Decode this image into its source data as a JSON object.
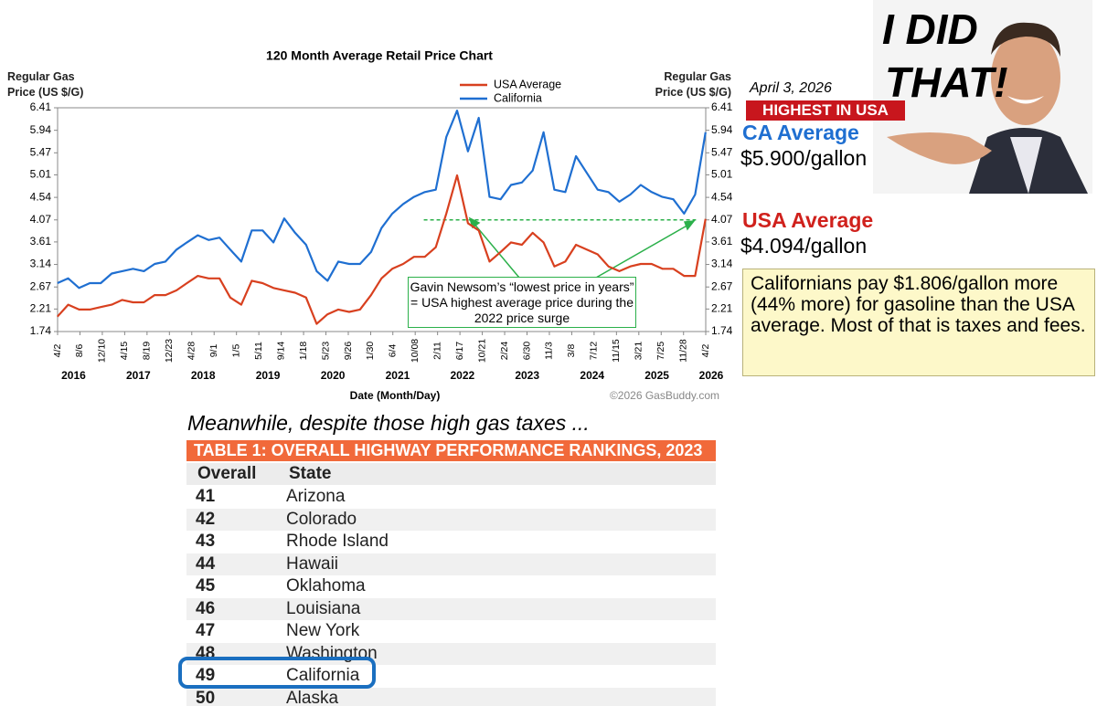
{
  "chart_data": {
    "type": "line",
    "title": "120 Month Average Retail Price Chart",
    "y_label": "Regular Gas Price (US $/G)",
    "y2_label": "Regular Gas Price (US $/G)",
    "x_label": "Date (Month/Day)",
    "credit": "©2026 GasBuddy.com",
    "legend": "top",
    "grid": false,
    "x": [
      "2016-04",
      "2016-06",
      "2016-08",
      "2016-10",
      "2016-12",
      "2017-02",
      "2017-04",
      "2017-06",
      "2017-08",
      "2017-10",
      "2017-12",
      "2018-02",
      "2018-04",
      "2018-06",
      "2018-08",
      "2018-10",
      "2018-12",
      "2019-02",
      "2019-04",
      "2019-06",
      "2019-08",
      "2019-10",
      "2019-12",
      "2020-02",
      "2020-04",
      "2020-06",
      "2020-08",
      "2020-10",
      "2020-12",
      "2021-02",
      "2021-04",
      "2021-06",
      "2021-08",
      "2021-10",
      "2021-12",
      "2022-02",
      "2022-04",
      "2022-06",
      "2022-08",
      "2022-10",
      "2022-12",
      "2023-02",
      "2023-04",
      "2023-06",
      "2023-08",
      "2023-10",
      "2023-12",
      "2024-02",
      "2024-04",
      "2024-06",
      "2024-08",
      "2024-10",
      "2024-12",
      "2025-02",
      "2025-04",
      "2025-06",
      "2025-08",
      "2025-10",
      "2025-12",
      "2026-02",
      "2026-04"
    ],
    "series": [
      {
        "name": "USA Average",
        "color": "#d8401f",
        "values": [
          2.05,
          2.3,
          2.2,
          2.2,
          2.25,
          2.3,
          2.4,
          2.35,
          2.35,
          2.5,
          2.5,
          2.6,
          2.75,
          2.9,
          2.85,
          2.85,
          2.45,
          2.3,
          2.8,
          2.75,
          2.65,
          2.6,
          2.55,
          2.45,
          1.9,
          2.1,
          2.2,
          2.15,
          2.2,
          2.5,
          2.85,
          3.05,
          3.15,
          3.3,
          3.3,
          3.5,
          4.2,
          5.0,
          4.0,
          3.85,
          3.2,
          3.4,
          3.6,
          3.55,
          3.8,
          3.6,
          3.1,
          3.2,
          3.55,
          3.45,
          3.35,
          3.1,
          3.0,
          3.1,
          3.15,
          3.15,
          3.05,
          3.05,
          2.9,
          2.9,
          4.09
        ]
      },
      {
        "name": "California",
        "color": "#1f6fd1",
        "values": [
          2.75,
          2.85,
          2.65,
          2.75,
          2.75,
          2.95,
          3.0,
          3.05,
          3.0,
          3.15,
          3.2,
          3.45,
          3.6,
          3.75,
          3.65,
          3.7,
          3.45,
          3.2,
          3.85,
          3.85,
          3.6,
          4.1,
          3.8,
          3.55,
          3.0,
          2.8,
          3.2,
          3.15,
          3.15,
          3.4,
          3.9,
          4.2,
          4.4,
          4.55,
          4.65,
          4.7,
          5.8,
          6.35,
          5.5,
          6.2,
          4.55,
          4.5,
          4.8,
          4.85,
          5.1,
          5.9,
          4.7,
          4.65,
          5.4,
          5.05,
          4.7,
          4.65,
          4.45,
          4.6,
          4.8,
          4.65,
          4.55,
          4.5,
          4.2,
          4.6,
          5.9
        ]
      }
    ],
    "xlim": [
      "2016-04-02",
      "2026-04-02"
    ],
    "xticks": [
      {
        "value": "2016-04-02",
        "label": "4/2"
      },
      {
        "value": "2016-08-06",
        "label": "8/6"
      },
      {
        "value": "2016-12-10",
        "label": "12/10"
      },
      {
        "value": "2017-04-15",
        "label": "4/15"
      },
      {
        "value": "2017-08-19",
        "label": "8/19"
      },
      {
        "value": "2017-12-23",
        "label": "12/23"
      },
      {
        "value": "2018-04-28",
        "label": "4/28"
      },
      {
        "value": "2018-09-01",
        "label": "9/1"
      },
      {
        "value": "2019-01-05",
        "label": "1/5"
      },
      {
        "value": "2019-05-11",
        "label": "5/11"
      },
      {
        "value": "2019-09-14",
        "label": "9/14"
      },
      {
        "value": "2020-01-18",
        "label": "1/18"
      },
      {
        "value": "2020-05-23",
        "label": "5/23"
      },
      {
        "value": "2020-09-26",
        "label": "9/26"
      },
      {
        "value": "2021-01-30",
        "label": "1/30"
      },
      {
        "value": "2021-06-04",
        "label": "6/4"
      },
      {
        "value": "2021-10-08",
        "label": "10/08"
      },
      {
        "value": "2022-02-11",
        "label": "2/11"
      },
      {
        "value": "2022-06-17",
        "label": "6/17"
      },
      {
        "value": "2022-10-21",
        "label": "10/21"
      },
      {
        "value": "2023-02-24",
        "label": "2/24"
      },
      {
        "value": "2023-06-30",
        "label": "6/30"
      },
      {
        "value": "2023-11-03",
        "label": "11/3"
      },
      {
        "value": "2024-03-08",
        "label": "3/8"
      },
      {
        "value": "2024-07-12",
        "label": "7/12"
      },
      {
        "value": "2024-11-15",
        "label": "11/15"
      },
      {
        "value": "2025-03-21",
        "label": "3/21"
      },
      {
        "value": "2025-07-25",
        "label": "7/25"
      },
      {
        "value": "2025-11-28",
        "label": "11/28"
      },
      {
        "value": "2026-04-02",
        "label": "4/2"
      }
    ],
    "year_labels": [
      2016,
      2017,
      2018,
      2019,
      2020,
      2021,
      2022,
      2023,
      2024,
      2025,
      2026
    ],
    "ylim": [
      1.74,
      6.41
    ],
    "yticks": [
      1.74,
      2.21,
      2.67,
      3.14,
      3.61,
      4.07,
      4.54,
      5.01,
      5.47,
      5.94,
      6.41
    ],
    "y2lim": [
      1.74,
      6.41
    ],
    "y2ticks": [
      1.74,
      2.21,
      2.67,
      3.14,
      3.61,
      4.07,
      4.54,
      5.01,
      5.47,
      5.94,
      6.41
    ],
    "reference_line": {
      "value": 4.07,
      "color": "#2bb04a"
    },
    "annotation": "Gavin Newsom’s “lowest price in years” = USA highest average price during the 2022 price surge"
  },
  "meme": {
    "line1": "I DID",
    "line2": "THAT!"
  },
  "side_panel": {
    "date": "April 3, 2026",
    "badge": "HIGHEST IN USA",
    "ca_label": "CA Average",
    "ca_price": "$5.900/gallon",
    "usa_label": "USA Average",
    "usa_price": "$4.094/gallon",
    "note": "Californians pay $1.806/gallon more (44% more) for gasoline than the USA average. Most of that is taxes and fees."
  },
  "table": {
    "intro": "Meanwhile, despite those high gas taxes ...",
    "title": "TABLE 1: OVERALL HIGHWAY PERFORMANCE RANKINGS, 2023",
    "headers": [
      "Overall",
      "State"
    ],
    "rows": [
      [
        41,
        "Arizona"
      ],
      [
        42,
        "Colorado"
      ],
      [
        43,
        "Rhode Island"
      ],
      [
        44,
        "Hawaii"
      ],
      [
        45,
        "Oklahoma"
      ],
      [
        46,
        "Louisiana"
      ],
      [
        47,
        "New York"
      ],
      [
        48,
        "Washington"
      ],
      [
        49,
        "California"
      ],
      [
        50,
        "Alaska"
      ]
    ],
    "highlight_row": 8
  }
}
